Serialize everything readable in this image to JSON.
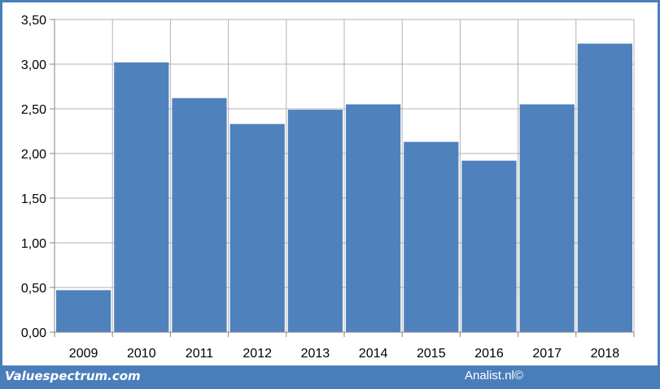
{
  "colors": {
    "bar": "#4f81bd",
    "frame": "#4a7ebb",
    "grid": "#b3b3b3",
    "axis": "#868686"
  },
  "footer": {
    "left_text": "Valuespectrum.com",
    "right_text": "Analist.nl©"
  },
  "chart_data": {
    "type": "bar",
    "categories": [
      "2009",
      "2010",
      "2011",
      "2012",
      "2013",
      "2014",
      "2015",
      "2016",
      "2017",
      "2018"
    ],
    "values": [
      0.47,
      3.02,
      2.62,
      2.33,
      2.49,
      2.55,
      2.13,
      1.92,
      2.55,
      3.23
    ],
    "ylim": [
      0,
      3.5
    ],
    "yticks": [
      "0,00",
      "0,50",
      "1,00",
      "1,50",
      "2,00",
      "2,50",
      "3,00",
      "3,50"
    ],
    "grid": true,
    "title": "",
    "xlabel": "",
    "ylabel": ""
  }
}
